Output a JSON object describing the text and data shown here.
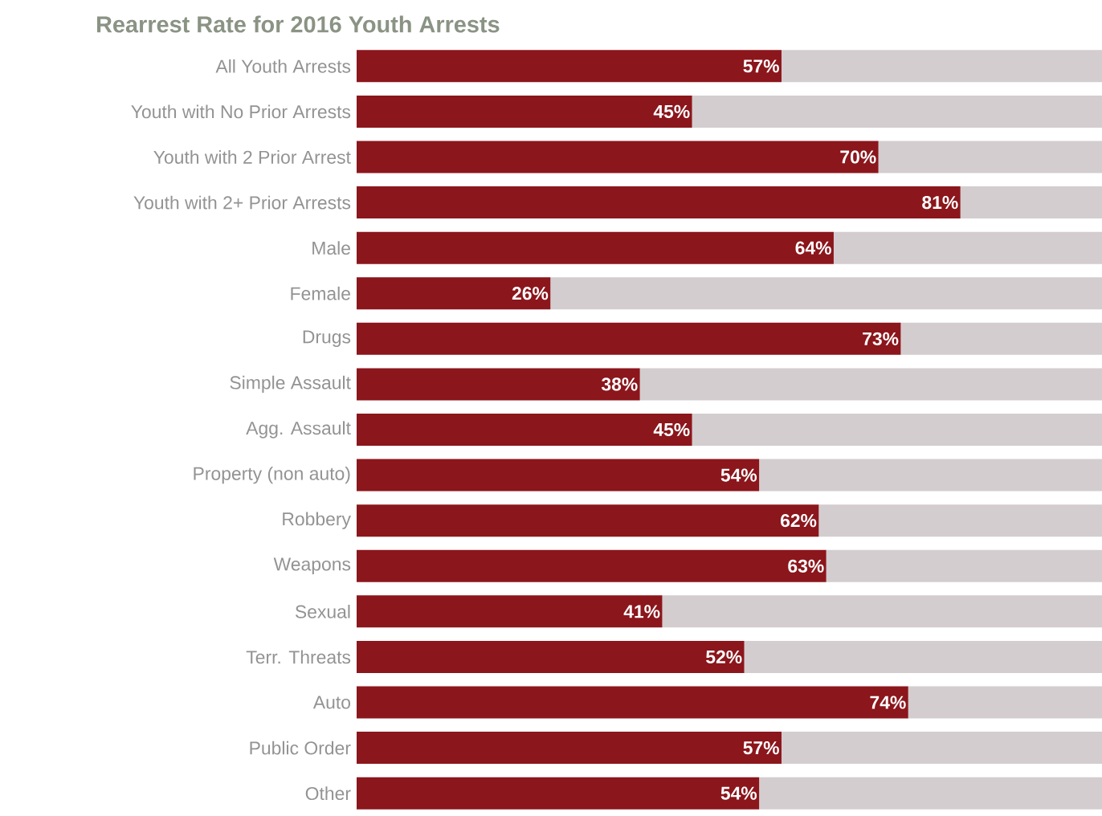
{
  "chart_data": {
    "type": "bar",
    "orientation": "horizontal",
    "stacked": true,
    "title": "Rearrest Rate for 2016 Youth Arrests",
    "categories": [
      "All Youth Arrests",
      "Youth with No Prior Arrests",
      "Youth with 2 Prior Arrest",
      "Youth with 2+ Prior Arrests",
      "Male",
      "Female",
      "Drugs",
      "Simple Assault",
      "Agg. Assault",
      "Property (non auto)",
      "Robbery",
      "Weapons",
      "Sexual",
      "Terr. Threats",
      "Auto",
      "Public Order",
      "Other"
    ],
    "xlim": [
      0,
      100
    ],
    "tick_labels": "y",
    "series": [
      {
        "color": "#8b161c",
        "values": [
          57,
          45,
          70,
          81,
          64,
          26,
          73,
          38,
          45,
          54,
          62,
          63,
          41,
          52,
          74,
          57,
          54
        ],
        "value_labels": [
          "57%",
          "45%",
          "70%",
          "81%",
          "64%",
          "26%",
          "73%",
          "38%",
          "45%",
          "54%",
          "62%",
          "63%",
          "41%",
          "52%",
          "74%",
          "57%",
          "54%"
        ]
      },
      {
        "color": "#d3cdcf",
        "values": [
          43,
          55,
          30,
          19,
          36,
          74,
          27,
          62,
          55,
          46,
          38,
          37,
          59,
          48,
          26,
          43,
          46
        ]
      }
    ]
  }
}
